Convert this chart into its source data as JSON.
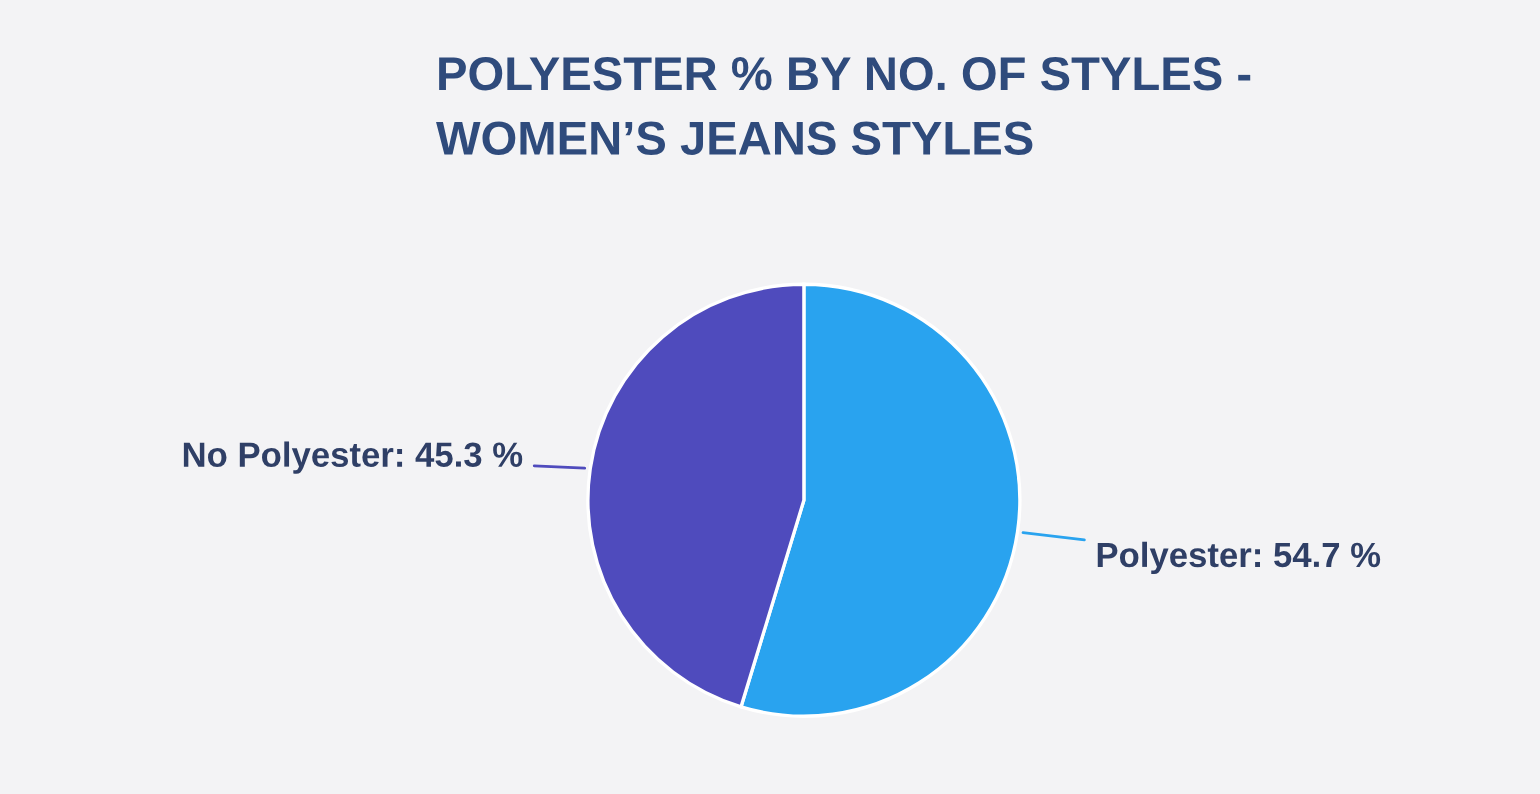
{
  "chart_data": {
    "type": "pie",
    "title": "POLYESTER % BY NO. OF STYLES -\nWOMEN’S JEANS STYLES",
    "categories": [
      "Polyester",
      "No Polyester"
    ],
    "values": [
      54.7,
      45.3
    ],
    "value_labels": [
      "54.7 %",
      "45.3 %"
    ],
    "colors": [
      "#29a3ef",
      "#4f4bbd"
    ],
    "legend": false
  }
}
